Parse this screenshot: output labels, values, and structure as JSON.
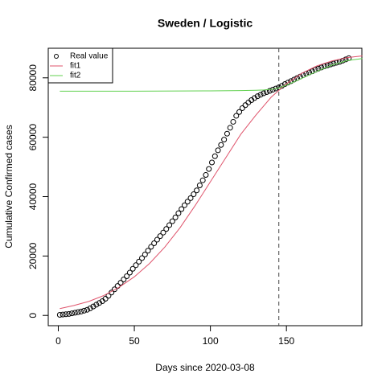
{
  "chart_data": {
    "type": "scatter",
    "title": "Sweden / Logistic",
    "xlabel": "Days since 2020-03-08",
    "ylabel": "Cumulative Confirmed cases",
    "xlim": [
      -6.6,
      199.6
    ],
    "ylim": [
      -3460,
      89960
    ],
    "xticks": [
      0,
      50,
      100,
      150
    ],
    "yticks": [
      0,
      20000,
      40000,
      60000,
      80000
    ],
    "vline": 145,
    "legend": "top-left",
    "series": [
      {
        "name": "Real value",
        "color": "#000000",
        "style": "points",
        "x": [
          1,
          3,
          5,
          7,
          9,
          11,
          13,
          15,
          17,
          19,
          21,
          23,
          25,
          27,
          29,
          31,
          33,
          35,
          37,
          39,
          41,
          43,
          45,
          47,
          49,
          51,
          53,
          55,
          57,
          59,
          61,
          63,
          65,
          67,
          69,
          71,
          73,
          75,
          77,
          79,
          81,
          83,
          85,
          87,
          89,
          91,
          93,
          95,
          97,
          99,
          101,
          103,
          105,
          107,
          109,
          111,
          113,
          115,
          117,
          119,
          121,
          123,
          125,
          127,
          129,
          131,
          133,
          135,
          137,
          139,
          141,
          143,
          145,
          147,
          149,
          151,
          153,
          155,
          157,
          159,
          161,
          163,
          165,
          167,
          169,
          171,
          173,
          175,
          177,
          179,
          181,
          183,
          185,
          187,
          189,
          191
        ],
        "values": [
          200,
          300,
          400,
          500,
          700,
          900,
          1100,
          1300,
          1600,
          1900,
          2400,
          3000,
          3600,
          4200,
          4800,
          5600,
          6600,
          7700,
          8800,
          9900,
          11000,
          12100,
          13200,
          14400,
          15700,
          16900,
          18100,
          19300,
          20500,
          21800,
          23100,
          24300,
          25500,
          26700,
          27900,
          29100,
          30400,
          31700,
          33000,
          34400,
          35800,
          37100,
          38300,
          39500,
          40800,
          42100,
          43800,
          45500,
          47300,
          49300,
          51500,
          53600,
          55600,
          57400,
          59200,
          61200,
          63200,
          65200,
          67200,
          68500,
          69800,
          70800,
          71700,
          72500,
          73200,
          73800,
          74300,
          74800,
          75200,
          75600,
          76000,
          76400,
          76800,
          77300,
          77900,
          78400,
          78900,
          79400,
          79900,
          80400,
          80900,
          81400,
          81800,
          82200,
          82700,
          83100,
          83500,
          83900,
          84200,
          84500,
          84800,
          85100,
          85400,
          85800,
          86200,
          86600
        ]
      },
      {
        "name": "fit1",
        "color": "#DF536B",
        "style": "line",
        "x": [
          1,
          10,
          20,
          30,
          40,
          50,
          60,
          70,
          80,
          90,
          100,
          110,
          120,
          130,
          140,
          150,
          160,
          170,
          180,
          190,
          200
        ],
        "values": [
          2300,
          3300,
          4700,
          6700,
          9500,
          13000,
          17500,
          23000,
          29500,
          37000,
          45000,
          53000,
          61000,
          67500,
          73500,
          78000,
          81500,
          84000,
          85700,
          86800,
          87400
        ]
      },
      {
        "name": "fit2",
        "color": "#61D04F",
        "style": "line",
        "x": [
          1,
          50,
          100,
          120,
          130,
          135,
          140,
          145,
          150,
          160,
          170,
          180,
          190,
          200
        ],
        "values": [
          75500,
          75500,
          75600,
          75700,
          75800,
          75900,
          76100,
          76600,
          77500,
          79800,
          82200,
          84300,
          85800,
          86500
        ]
      }
    ]
  }
}
